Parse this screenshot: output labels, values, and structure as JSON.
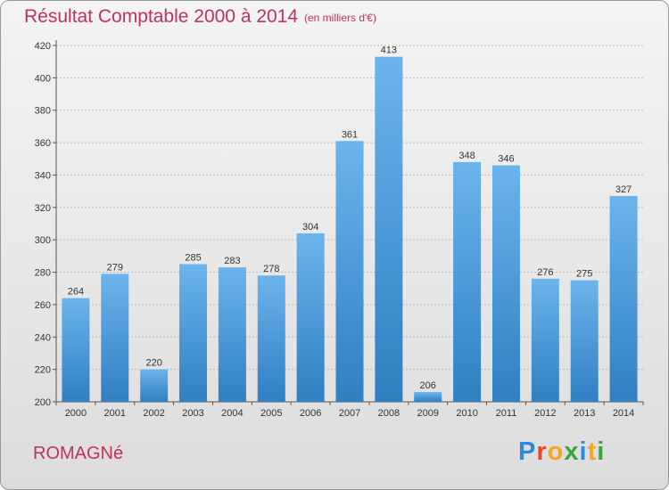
{
  "title": "Résultat Comptable 2000 à 2014",
  "subtitle": "(en milliers d'€)",
  "commune": "ROMAGNé",
  "brand": {
    "letters": [
      "P",
      "r",
      "o",
      "x",
      "i",
      "t",
      "i"
    ],
    "colors": [
      "#2e8ad8",
      "#e8452c",
      "#f5a623",
      "#3aa63a",
      "#2e8ad8",
      "#f5a623",
      "#3aa63a"
    ]
  },
  "colors": {
    "title": "#c0325a",
    "bar_light": "#6cb4ec",
    "bar_dark": "#2f7fc2"
  },
  "chart_data": {
    "type": "bar",
    "categories": [
      "2000",
      "2001",
      "2002",
      "2003",
      "2004",
      "2005",
      "2006",
      "2007",
      "2008",
      "2009",
      "2010",
      "2011",
      "2012",
      "2013",
      "2014"
    ],
    "values": [
      264,
      279,
      220,
      285,
      283,
      278,
      304,
      361,
      413,
      206,
      348,
      346,
      276,
      275,
      327
    ],
    "ylim": [
      200,
      420
    ],
    "yticks": [
      200,
      220,
      240,
      260,
      280,
      300,
      320,
      340,
      360,
      380,
      400,
      420
    ],
    "grid": true
  }
}
